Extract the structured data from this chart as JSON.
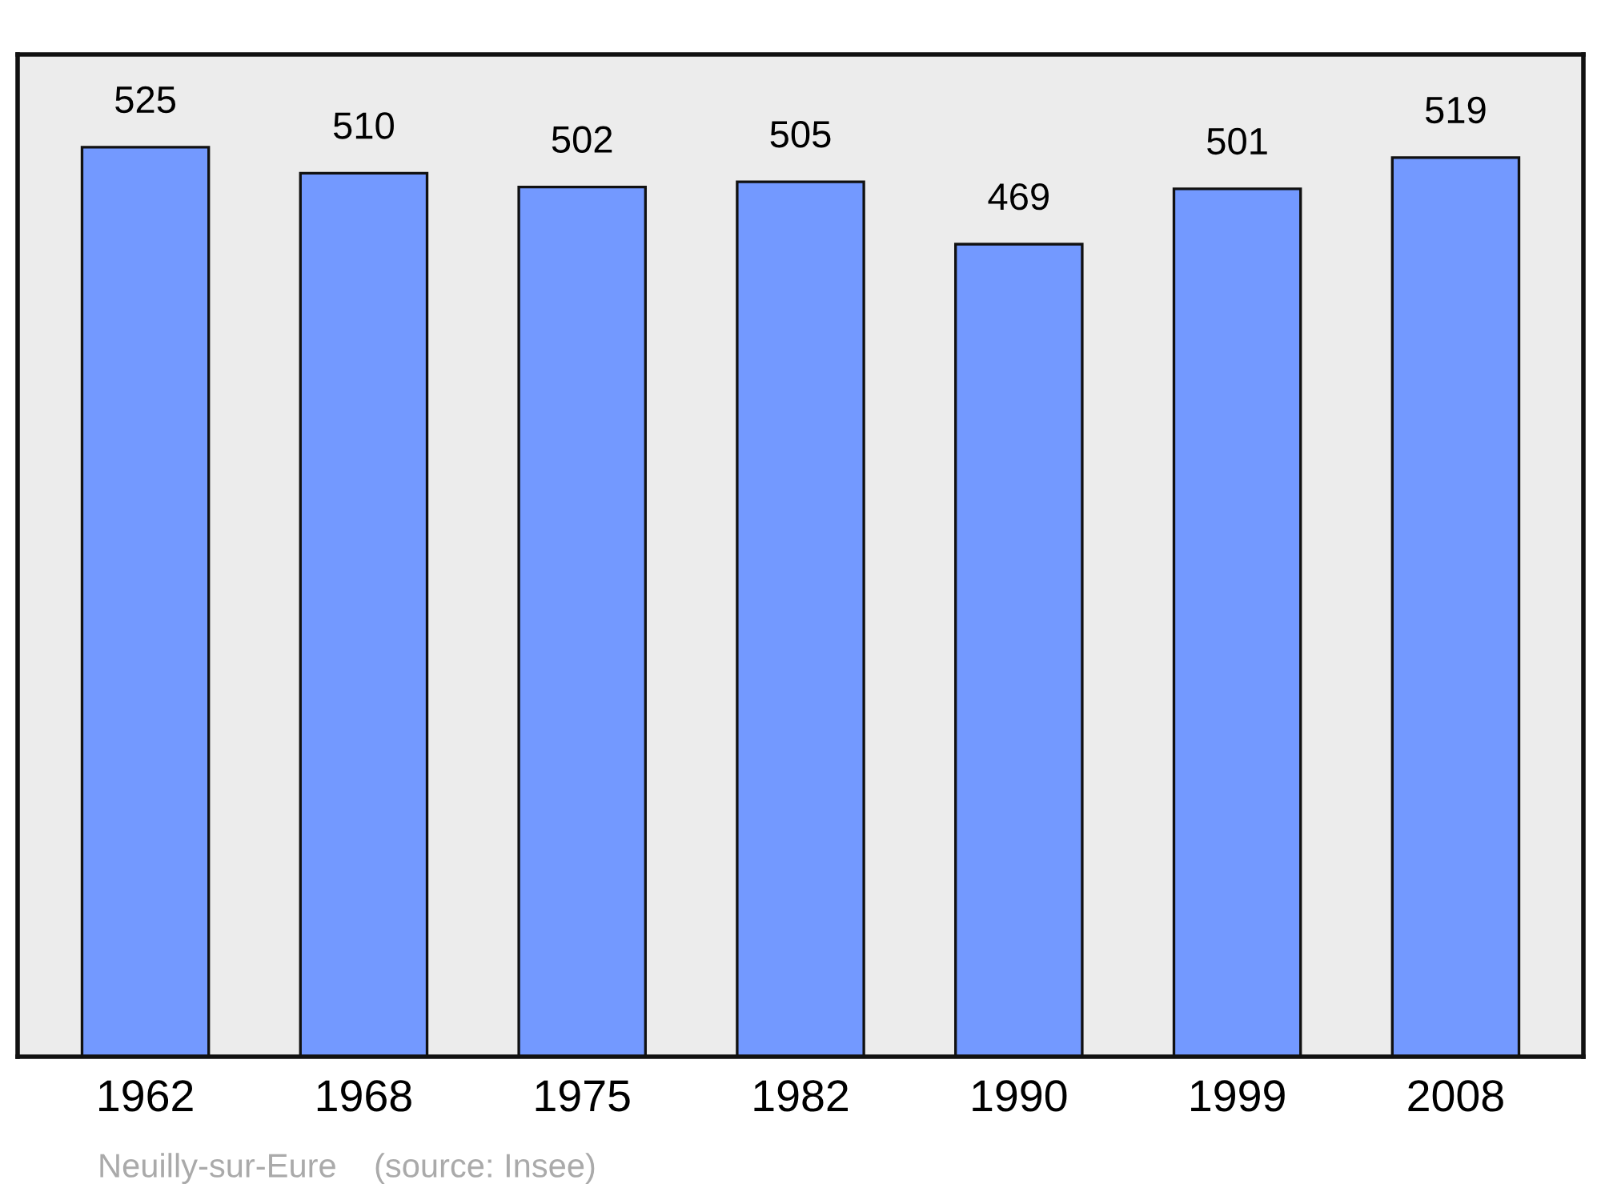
{
  "chart_data": {
    "type": "bar",
    "categories": [
      "1962",
      "1968",
      "1975",
      "1982",
      "1990",
      "1999",
      "2008"
    ],
    "values": [
      525,
      510,
      502,
      505,
      469,
      501,
      519
    ],
    "color": "#7399ff",
    "data_labels": true,
    "grid": false,
    "annotations": [
      "Neuilly-sur-Eure    (source: Insee)"
    ]
  }
}
